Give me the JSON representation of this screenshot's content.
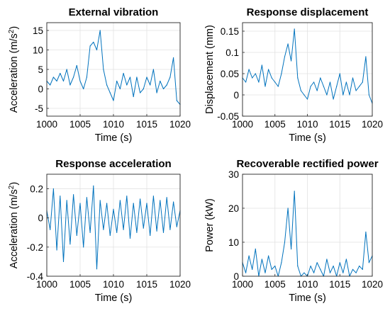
{
  "chart_data": [
    {
      "type": "line",
      "title": "External vibration",
      "xlabel": "Time (s)",
      "ylabel": "Acceleration (m/s",
      "ylabel_sup": "2",
      "ylabel_close": ")",
      "xlim": [
        1000,
        1020
      ],
      "ylim": [
        -7,
        17
      ],
      "xticks": [
        1000,
        1005,
        1010,
        1015,
        1020
      ],
      "xtick_labels": [
        "1000",
        "1005",
        "1010",
        "1015",
        "1020"
      ],
      "yticks": [
        -5,
        0,
        5,
        10,
        15
      ],
      "ytick_labels": [
        "-5",
        "0",
        "5",
        "10",
        "15"
      ],
      "grid": true,
      "color": "#0072bd",
      "series": [
        {
          "x": [
            1000,
            1000.5,
            1001,
            1001.5,
            1002,
            1002.5,
            1003,
            1003.5,
            1004,
            1004.5,
            1005,
            1005.5,
            1006,
            1006.5,
            1007,
            1007.5,
            1008,
            1008.5,
            1009,
            1009.5,
            1010,
            1010.5,
            1011,
            1011.5,
            1012,
            1012.5,
            1013,
            1013.5,
            1014,
            1014.5,
            1015,
            1015.5,
            1016,
            1016.5,
            1017,
            1017.5,
            1018,
            1018.5,
            1019,
            1019.5,
            1020
          ],
          "y": [
            2,
            1,
            3,
            2,
            4,
            2,
            5,
            1,
            3,
            6,
            2,
            0,
            3,
            11,
            12,
            10,
            15,
            5,
            1,
            -1,
            -3,
            2,
            0,
            4,
            1,
            3,
            -2,
            3,
            -1,
            0,
            3,
            1,
            5,
            -1,
            2,
            0,
            1,
            3,
            8,
            -3,
            -4
          ]
        }
      ]
    },
    {
      "type": "line",
      "title": "Response displacement",
      "xlabel": "Time (s)",
      "ylabel": "Displacement (mm)",
      "xlim": [
        1000,
        1020
      ],
      "ylim": [
        -0.05,
        0.17
      ],
      "xticks": [
        1000,
        1005,
        1010,
        1015,
        1020
      ],
      "xtick_labels": [
        "1000",
        "1005",
        "1010",
        "1015",
        "1020"
      ],
      "yticks": [
        -0.05,
        0,
        0.05,
        0.1,
        0.15
      ],
      "ytick_labels": [
        "-0.05",
        "0",
        "0.05",
        "0.1",
        "0.15"
      ],
      "grid": true,
      "color": "#0072bd",
      "series": [
        {
          "x": [
            1000,
            1000.5,
            1001,
            1001.5,
            1002,
            1002.5,
            1003,
            1003.5,
            1004,
            1004.5,
            1005,
            1005.5,
            1006,
            1006.5,
            1007,
            1007.5,
            1008,
            1008.5,
            1009,
            1009.5,
            1010,
            1010.5,
            1011,
            1011.5,
            1012,
            1012.5,
            1013,
            1013.5,
            1014,
            1014.5,
            1015,
            1015.5,
            1016,
            1016.5,
            1017,
            1017.5,
            1018,
            1018.5,
            1019,
            1019.5,
            1020
          ],
          "y": [
            0.04,
            0.03,
            0.06,
            0.04,
            0.05,
            0.03,
            0.07,
            0.02,
            0.06,
            0.04,
            0.03,
            0.02,
            0.05,
            0.09,
            0.12,
            0.08,
            0.155,
            0.04,
            0.01,
            0.0,
            -0.01,
            0.02,
            0.03,
            0.01,
            0.04,
            0.02,
            0.0,
            0.03,
            -0.01,
            0.02,
            0.05,
            0.0,
            0.03,
            0.0,
            0.04,
            0.01,
            0.02,
            0.03,
            0.09,
            0.0,
            -0.02
          ]
        }
      ]
    },
    {
      "type": "line",
      "title": "Response acceleration",
      "xlabel": "Time (s)",
      "ylabel": "Acceleration (m/s",
      "ylabel_sup": "2",
      "ylabel_close": ")",
      "xlim": [
        1000,
        1020
      ],
      "ylim": [
        -0.4,
        0.3
      ],
      "xticks": [
        1000,
        1005,
        1010,
        1015,
        1020
      ],
      "xtick_labels": [
        "1000",
        "1005",
        "1010",
        "1015",
        "1020"
      ],
      "yticks": [
        -0.4,
        -0.2,
        0,
        0.2
      ],
      "ytick_labels": [
        "-0.4",
        "-0.2",
        "0",
        "0.2"
      ],
      "grid": true,
      "color": "#0072bd",
      "series": [
        {
          "x": [
            1000,
            1000.5,
            1001,
            1001.5,
            1002,
            1002.5,
            1003,
            1003.5,
            1004,
            1004.5,
            1005,
            1005.5,
            1006,
            1006.5,
            1007,
            1007.5,
            1008,
            1008.5,
            1009,
            1009.5,
            1010,
            1010.5,
            1011,
            1011.5,
            1012,
            1012.5,
            1013,
            1013.5,
            1014,
            1014.5,
            1015,
            1015.5,
            1016,
            1016.5,
            1017,
            1017.5,
            1018,
            1018.5,
            1019,
            1019.5,
            1020
          ],
          "y": [
            0.05,
            -0.08,
            0.2,
            -0.22,
            0.15,
            -0.3,
            0.12,
            -0.18,
            0.16,
            -0.12,
            0.1,
            -0.2,
            0.14,
            -0.1,
            0.22,
            -0.35,
            0.12,
            -0.08,
            0.1,
            -0.12,
            0.06,
            -0.1,
            0.12,
            -0.08,
            0.15,
            -0.14,
            0.1,
            -0.1,
            0.13,
            -0.07,
            0.1,
            -0.12,
            0.15,
            -0.09,
            0.12,
            -0.1,
            0.14,
            -0.08,
            0.11,
            -0.06,
            0.05
          ]
        }
      ]
    },
    {
      "type": "line",
      "title": "Recoverable rectified power",
      "xlabel": "Time (s)",
      "ylabel": "Power (kW)",
      "xlim": [
        1000,
        1020
      ],
      "ylim": [
        0,
        30
      ],
      "xticks": [
        1000,
        1005,
        1010,
        1015,
        1020
      ],
      "xtick_labels": [
        "1000",
        "1005",
        "1010",
        "1015",
        "1020"
      ],
      "yticks": [
        0,
        10,
        20,
        30
      ],
      "ytick_labels": [
        "0",
        "10",
        "20",
        "30"
      ],
      "grid": true,
      "color": "#0072bd",
      "series": [
        {
          "x": [
            1000,
            1000.5,
            1001,
            1001.5,
            1002,
            1002.5,
            1003,
            1003.5,
            1004,
            1004.5,
            1005,
            1005.5,
            1006,
            1006.5,
            1007,
            1007.5,
            1008,
            1008.5,
            1009,
            1009.5,
            1010,
            1010.5,
            1011,
            1011.5,
            1012,
            1012.5,
            1013,
            1013.5,
            1014,
            1014.5,
            1015,
            1015.5,
            1016,
            1016.5,
            1017,
            1017.5,
            1018,
            1018.5,
            1019,
            1019.5,
            1020
          ],
          "y": [
            4,
            1,
            6,
            2,
            8,
            0,
            5,
            1,
            6,
            2,
            3,
            0,
            4,
            10,
            20,
            8,
            25,
            3,
            0,
            1,
            0,
            3,
            1,
            4,
            2,
            0,
            5,
            1,
            3,
            0,
            4,
            1,
            5,
            0,
            2,
            1,
            3,
            2,
            13,
            4,
            6
          ]
        }
      ]
    }
  ]
}
